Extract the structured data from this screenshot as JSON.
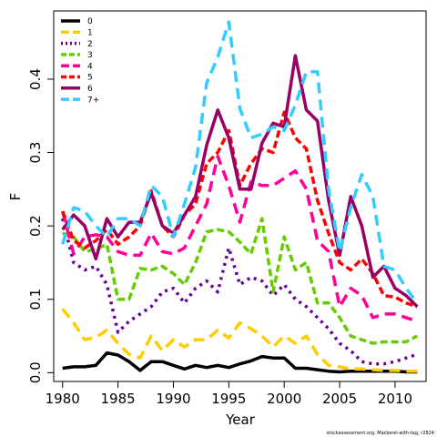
{
  "chart_data": {
    "type": "line",
    "title": "",
    "xlabel": "Year",
    "ylabel": "F",
    "xlim": [
      1979.2,
      2012.8
    ],
    "ylim": [
      -0.012,
      0.493
    ],
    "xticks": [
      1980,
      1985,
      1990,
      1995,
      2000,
      2005,
      2010
    ],
    "yticks": [
      0.0,
      0.1,
      0.2,
      0.3,
      0.4
    ],
    "ytick_labels": [
      "0.0",
      "0.1",
      "0.2",
      "0.3",
      "0.4"
    ],
    "grid": false,
    "legend_position": "top-left",
    "credit": "stockassessment.org, Mackerel-with-tag, r2824",
    "x": [
      1980,
      1981,
      1982,
      1983,
      1984,
      1985,
      1986,
      1987,
      1988,
      1989,
      1990,
      1991,
      1992,
      1993,
      1994,
      1995,
      1996,
      1997,
      1998,
      1999,
      2000,
      2001,
      2002,
      2003,
      2004,
      2005,
      2006,
      2007,
      2008,
      2009,
      2010,
      2011,
      2012
    ],
    "series": [
      {
        "name": "0",
        "color": "#000000",
        "dash": "solid",
        "values": [
          0.006,
          0.008,
          0.008,
          0.01,
          0.027,
          0.024,
          0.015,
          0.003,
          0.015,
          0.015,
          0.01,
          0.005,
          0.01,
          0.007,
          0.01,
          0.007,
          0.012,
          0.016,
          0.022,
          0.02,
          0.02,
          0.006,
          0.006,
          0.004,
          0.002,
          0.001,
          0.002,
          0.002,
          0.002,
          0.002,
          0.002,
          0.001,
          0.001
        ]
      },
      {
        "name": "1",
        "color": "#ffcc00",
        "dash": "long",
        "values": [
          0.087,
          0.068,
          0.045,
          0.048,
          0.058,
          0.04,
          0.025,
          0.02,
          0.05,
          0.03,
          0.045,
          0.035,
          0.045,
          0.045,
          0.058,
          0.047,
          0.068,
          0.06,
          0.05,
          0.035,
          0.05,
          0.04,
          0.05,
          0.025,
          0.01,
          0.008,
          0.005,
          0.005,
          0.004,
          0.003,
          0.003,
          0.002,
          0.002
        ]
      },
      {
        "name": "2",
        "color": "#660099",
        "dash": "dot",
        "values": [
          0.21,
          0.15,
          0.14,
          0.145,
          0.12,
          0.055,
          0.07,
          0.08,
          0.09,
          0.11,
          0.115,
          0.095,
          0.115,
          0.125,
          0.11,
          0.17,
          0.12,
          0.13,
          0.125,
          0.105,
          0.12,
          0.1,
          0.09,
          0.075,
          0.06,
          0.04,
          0.03,
          0.015,
          0.012,
          0.012,
          0.015,
          0.02,
          0.025
        ]
      },
      {
        "name": "3",
        "color": "#66cc00",
        "dash": "medium",
        "values": [
          0.19,
          0.185,
          0.165,
          0.168,
          0.175,
          0.1,
          0.1,
          0.142,
          0.14,
          0.145,
          0.135,
          0.12,
          0.15,
          0.192,
          0.195,
          0.192,
          0.178,
          0.162,
          0.21,
          0.11,
          0.185,
          0.14,
          0.15,
          0.095,
          0.095,
          0.075,
          0.05,
          0.045,
          0.04,
          0.042,
          0.042,
          0.042,
          0.05
        ]
      },
      {
        "name": "4",
        "color": "#ff0099",
        "dash": "long",
        "values": [
          0.22,
          0.162,
          0.185,
          0.188,
          0.185,
          0.165,
          0.16,
          0.16,
          0.19,
          0.165,
          0.162,
          0.17,
          0.2,
          0.23,
          0.295,
          0.255,
          0.205,
          0.26,
          0.255,
          0.255,
          0.265,
          0.275,
          0.25,
          0.18,
          0.165,
          0.09,
          0.115,
          0.105,
          0.075,
          0.08,
          0.08,
          0.075,
          0.07
        ]
      },
      {
        "name": "5",
        "color": "#ff0000",
        "dash": "medium",
        "values": [
          0.22,
          0.18,
          0.17,
          0.18,
          0.195,
          0.175,
          0.185,
          0.2,
          0.248,
          0.2,
          0.185,
          0.215,
          0.23,
          0.285,
          0.3,
          0.33,
          0.255,
          0.285,
          0.305,
          0.3,
          0.355,
          0.32,
          0.305,
          0.235,
          0.19,
          0.15,
          0.14,
          0.155,
          0.135,
          0.105,
          0.103,
          0.095,
          0.09
        ]
      },
      {
        "name": "6",
        "color": "#990066",
        "dash": "solid",
        "values": [
          0.195,
          0.215,
          0.2,
          0.155,
          0.21,
          0.185,
          0.205,
          0.205,
          0.245,
          0.2,
          0.19,
          0.215,
          0.24,
          0.31,
          0.358,
          0.32,
          0.25,
          0.25,
          0.313,
          0.34,
          0.335,
          0.432,
          0.358,
          0.343,
          0.235,
          0.16,
          0.24,
          0.2,
          0.13,
          0.145,
          0.115,
          0.105,
          0.09
        ]
      },
      {
        "name": "7+",
        "color": "#33ccff",
        "dash": "long",
        "values": [
          0.175,
          0.225,
          0.22,
          0.2,
          0.185,
          0.21,
          0.21,
          0.2,
          0.255,
          0.24,
          0.185,
          0.23,
          0.28,
          0.395,
          0.43,
          0.478,
          0.36,
          0.32,
          0.325,
          0.335,
          0.33,
          0.365,
          0.41,
          0.41,
          0.25,
          0.165,
          0.225,
          0.27,
          0.24,
          0.145,
          0.14,
          0.115,
          0.095
        ]
      }
    ]
  }
}
